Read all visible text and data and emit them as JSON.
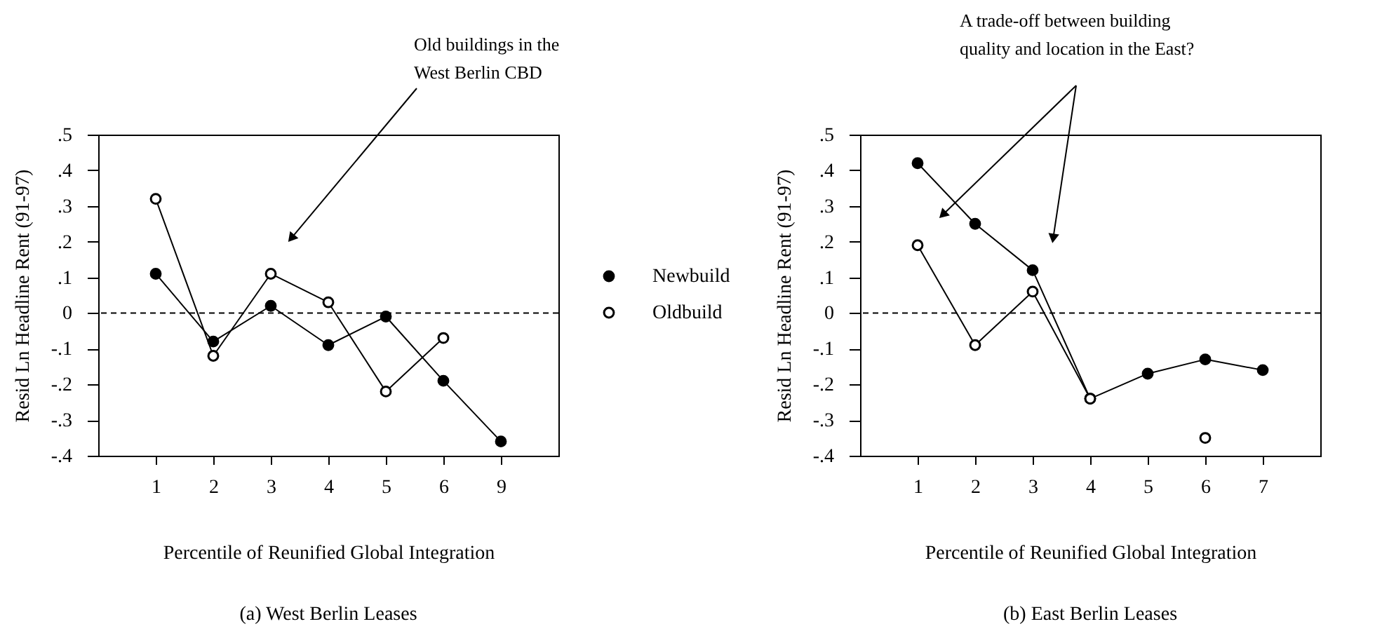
{
  "chart_data": [
    {
      "type": "line",
      "title": "(a) West Berlin Leases",
      "xlabel": "Percentile of Reunified Global Integration",
      "ylabel": "Resid Ln Headline Rent (91-97)",
      "categories": [
        "1",
        "2",
        "3",
        "4",
        "5",
        "6",
        "9"
      ],
      "series": [
        {
          "name": "Newbuild",
          "color": "#000000",
          "values": [
            0.11,
            -0.08,
            0.02,
            -0.09,
            -0.01,
            -0.19,
            -0.36
          ]
        },
        {
          "name": "Oldbuild",
          "color": "#000000",
          "values": [
            0.32,
            -0.12,
            0.11,
            0.03,
            -0.22,
            -0.07,
            null
          ]
        }
      ],
      "ylim": [
        -0.4,
        0.5
      ],
      "yticks": [
        {
          "value": -0.4,
          "label": "-.4"
        },
        {
          "value": -0.3,
          "label": "-.3"
        },
        {
          "value": -0.2,
          "label": "-.2"
        },
        {
          "value": -0.1,
          "label": "-.1"
        },
        {
          "value": 0,
          "label": "0"
        },
        {
          "value": 0.1,
          "label": ".1"
        },
        {
          "value": 0.2,
          "label": ".2"
        },
        {
          "value": 0.3,
          "label": ".3"
        },
        {
          "value": 0.4,
          "label": ".4"
        },
        {
          "value": 0.5,
          "label": ".5"
        }
      ],
      "ref_lines": [
        {
          "axis": "y",
          "value": 0,
          "line_style": "dashed"
        }
      ],
      "annotations": [
        "Old buildings in the West Berlin CBD"
      ],
      "marker": "circle",
      "legend": "right",
      "grid": false
    },
    {
      "type": "line",
      "title": "(b) East Berlin Leases",
      "xlabel": "Percentile of Reunified Global Integration",
      "ylabel": "Resid Ln Headline Rent (91-97)",
      "categories": [
        "1",
        "2",
        "3",
        "4",
        "5",
        "6",
        "7"
      ],
      "series": [
        {
          "color": "#000000",
          "values": [
            0.42,
            0.25,
            0.12,
            -0.24,
            -0.17,
            -0.13,
            -0.16
          ]
        },
        {
          "color": "#000000",
          "values": [
            0.19,
            -0.09,
            0.06,
            -0.24,
            null,
            -0.35,
            null
          ]
        }
      ],
      "ylim": [
        -0.4,
        0.5
      ],
      "yticks": [
        {
          "value": -0.4,
          "label": "-.4"
        },
        {
          "value": -0.3,
          "label": "-.3"
        },
        {
          "value": -0.2,
          "label": "-.2"
        },
        {
          "value": -0.1,
          "label": "-.1"
        },
        {
          "value": 0,
          "label": "0"
        },
        {
          "value": 0.1,
          "label": ".1"
        },
        {
          "value": 0.2,
          "label": ".2"
        },
        {
          "value": 0.3,
          "label": ".3"
        },
        {
          "value": 0.4,
          "label": ".4"
        },
        {
          "value": 0.5,
          "label": ".5"
        }
      ],
      "ref_lines": [
        {
          "axis": "y",
          "value": 0,
          "line_style": "dashed"
        }
      ],
      "annotations": [
        "A trade-off between building quality and location in the East?"
      ],
      "marker": "circle",
      "grid": false
    }
  ]
}
